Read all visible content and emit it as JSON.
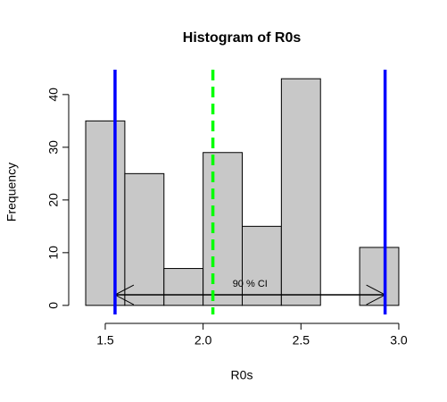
{
  "chart_data": {
    "type": "histogram",
    "title": "Histogram of R0s",
    "xlabel": "R0s",
    "ylabel": "Frequency",
    "bins": [
      1.4,
      1.6,
      1.8,
      2.0,
      2.2,
      2.4,
      2.6,
      2.8,
      3.0
    ],
    "values": [
      35,
      25,
      7,
      29,
      15,
      43,
      0,
      11
    ],
    "color": "#c8c8c8",
    "xlim": [
      1.4,
      3.0
    ],
    "ylim": [
      0,
      43
    ],
    "xticks": [
      1.5,
      {
        "value": 2,
        "label": "2.0"
      },
      2.5,
      {
        "value": 3,
        "label": "3.0"
      }
    ],
    "yticks": [
      0,
      10,
      20,
      30,
      40
    ],
    "vlines": [
      {
        "x": 1.55,
        "color": "#0000ff",
        "style": "solid"
      },
      {
        "x": 2.05,
        "color": "#00ff00",
        "style": "dashed"
      },
      {
        "x": 2.93,
        "color": "#0000ff",
        "style": "solid"
      }
    ],
    "interval": {
      "label": "90 % CI",
      "x": [
        1.55,
        2.93
      ],
      "y": 2,
      "label_y": 4
    }
  }
}
